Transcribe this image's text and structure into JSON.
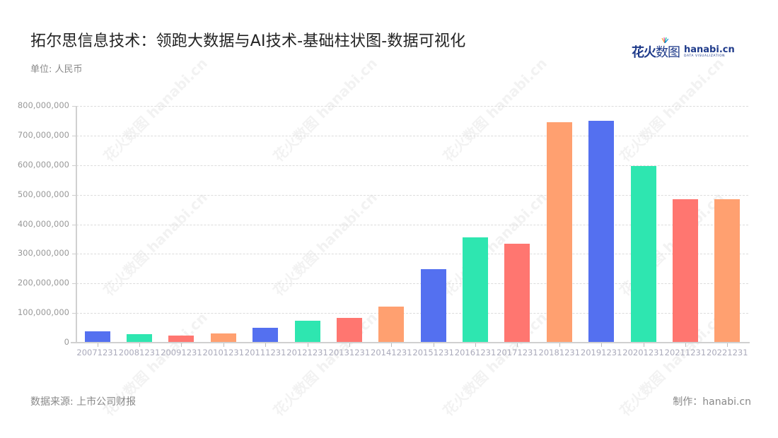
{
  "header": {
    "title": "拓尔思信息技术：领跑大数据与AI技术-基础柱状图-数据可视化",
    "unit": "单位: 人民币"
  },
  "logo": {
    "cn_bold": "花火",
    "cn_thin": "数图",
    "en": "hanabi.cn",
    "en_sub": "DATA VISUALIZATION"
  },
  "footer": {
    "source": "数据来源: 上市公司财报",
    "credit": "制作：hanabi.cn"
  },
  "watermark": "花火数图 hanabi.cn",
  "chart_data": {
    "type": "bar",
    "title": "拓尔思信息技术：领跑大数据与AI技术-基础柱状图-数据可视化",
    "xlabel": "",
    "ylabel": "单位: 人民币",
    "ylim": [
      0,
      800000000
    ],
    "yticks": [
      "0",
      "100,000,000",
      "200,000,000",
      "300,000,000",
      "400,000,000",
      "500,000,000",
      "600,000,000",
      "700,000,000",
      "800,000,000"
    ],
    "grid": true,
    "legend": "none",
    "categories": [
      "20071231",
      "20081231",
      "20091231",
      "20101231",
      "20111231",
      "20121231",
      "20131231",
      "20141231",
      "20151231",
      "20161231",
      "20171231",
      "20181231",
      "20191231",
      "20201231",
      "20211231",
      "20221231"
    ],
    "values": [
      38000000,
      29000000,
      25000000,
      31000000,
      51000000,
      74000000,
      84000000,
      122000000,
      249000000,
      356000000,
      335000000,
      744000000,
      749000000,
      598000000,
      484000000,
      484000000
    ],
    "bar_colors": [
      "#5470f0",
      "#2ee6b0",
      "#ff7670",
      "#ffa070"
    ],
    "color_cycle": "blue, green, red, orange repeating"
  }
}
